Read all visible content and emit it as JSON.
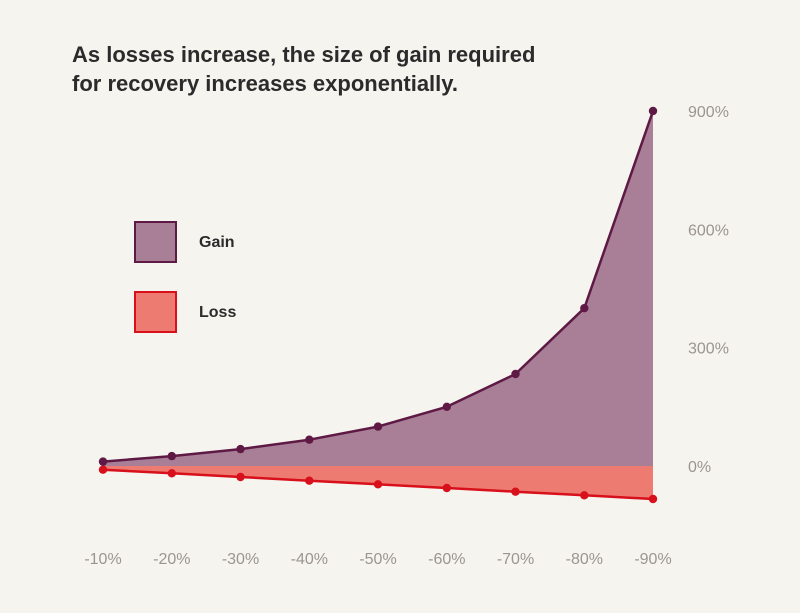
{
  "title_lines": [
    "As losses increase, the size of gain required",
    "for recovery increases exponentially."
  ],
  "chart_data": {
    "type": "area",
    "title": "As losses increase, the size of gain required for recovery increases exponentially.",
    "categories": [
      "-10%",
      "-20%",
      "-30%",
      "-40%",
      "-50%",
      "-60%",
      "-70%",
      "-80%",
      "-90%"
    ],
    "series": [
      {
        "name": "Gain",
        "values": [
          11.1,
          25,
          42.9,
          66.7,
          100,
          150,
          233.3,
          400,
          900
        ],
        "color": "#a87f97",
        "line_color": "#5e1a45"
      },
      {
        "name": "Loss",
        "values": [
          -10,
          -20,
          -30,
          -40,
          -50,
          -60,
          -70,
          -80,
          -90
        ],
        "color": "#ee7b72",
        "line_color": "#d8101b"
      }
    ],
    "y_axis": {
      "position": "right",
      "ylim": [
        -90,
        900
      ],
      "ticks": [
        0,
        300,
        600,
        900
      ],
      "tick_labels": [
        "0%",
        "300%",
        "600%",
        "900%"
      ]
    },
    "legend": {
      "placement": "left",
      "entries": [
        "Gain",
        "Loss"
      ]
    },
    "grid": false
  }
}
